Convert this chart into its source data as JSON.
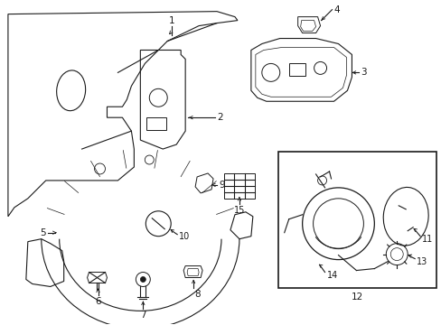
{
  "background_color": "#ffffff",
  "line_color": "#1a1a1a",
  "fig_width": 4.89,
  "fig_height": 3.6,
  "dpi": 100,
  "label_fontsize": 7.5,
  "lw": 0.8
}
